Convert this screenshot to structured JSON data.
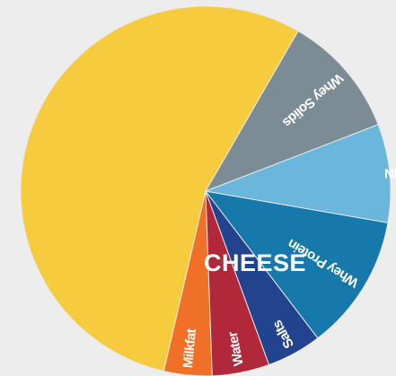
{
  "chart_data": {
    "type": "pie",
    "start_angle_deg": 60,
    "direction": "counterclockwise",
    "slices": [
      {
        "label": "CHEESE",
        "value": 54.7,
        "color": "#f6cc3e",
        "label_style": "big"
      },
      {
        "label": "Milkfat",
        "value": 4.2,
        "color": "#ef7026",
        "label_style": "radial"
      },
      {
        "label": "Water",
        "value": 5.0,
        "color": "#b1283a",
        "label_style": "radial"
      },
      {
        "label": "Salts",
        "value": 4.8,
        "color": "#22448f",
        "label_style": "radial"
      },
      {
        "label": "Whey Protein",
        "value": 11.9,
        "color": "#1779ab",
        "label_style": "radial"
      },
      {
        "label": "NFDM",
        "value": 8.6,
        "color": "#6ab6dc",
        "label_style": "horizontal"
      },
      {
        "label": "Whey Solids",
        "value": 10.8,
        "color": "#7c8c95",
        "label_style": "radial"
      }
    ]
  }
}
